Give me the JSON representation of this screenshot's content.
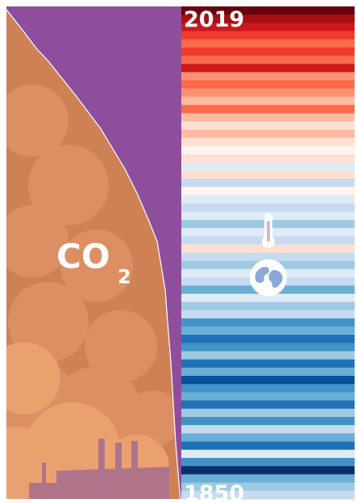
{
  "labels": {
    "top_year": "2019",
    "bottom_year": "1850",
    "co2_main": "CO",
    "co2_sub": "2"
  },
  "stripe_colors": [
    "#67000d",
    "#a50f15",
    "#cb181d",
    "#ef3b2c",
    "#fb6a4a",
    "#ef3b2c",
    "#fb6a4a",
    "#cb181d",
    "#fc9272",
    "#fb6a4a",
    "#fc9272",
    "#fcbba1",
    "#fb6a4a",
    "#fcbba1",
    "#fee0d2",
    "#fcbba1",
    "#fee0d2",
    "#fff5f0",
    "#fee0d2",
    "#deebf7",
    "#fee0d2",
    "#c6dbef",
    "#fff5f0",
    "#deebf7",
    "#c6dbef",
    "#deebf7",
    "#9ecae1",
    "#deebf7",
    "#c6dbef",
    "#fee0d2",
    "#c6dbef",
    "#9ecae1",
    "#deebf7",
    "#c6dbef",
    "#6baed6",
    "#deebf7",
    "#9ecae1",
    "#c6dbef",
    "#4292c6",
    "#6baed6",
    "#2171b5",
    "#4292c6",
    "#9ecae1",
    "#2171b5",
    "#6baed6",
    "#08519c",
    "#4292c6",
    "#6baed6",
    "#2171b5",
    "#9ecae1",
    "#4292c6",
    "#c6dbef",
    "#6baed6",
    "#2171b5",
    "#deebf7",
    "#4292c6",
    "#08306b",
    "#6baed6",
    "#9ecae1",
    "#c6dbef"
  ]
}
